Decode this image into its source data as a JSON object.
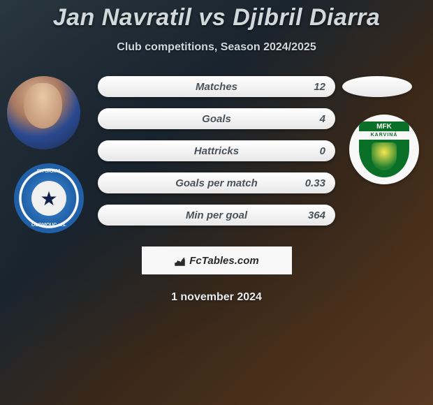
{
  "title": "Jan Navratil vs Djibril Diarra",
  "subtitle": "Club competitions, Season 2024/2025",
  "stats": [
    {
      "label": "Matches",
      "value": "12"
    },
    {
      "label": "Goals",
      "value": "4"
    },
    {
      "label": "Hattricks",
      "value": "0"
    },
    {
      "label": "Goals per match",
      "value": "0.33"
    },
    {
      "label": "Min per goal",
      "value": "364"
    }
  ],
  "club_left": {
    "name_top": "SK SIGMA",
    "name_bottom": "OLOMOUC a.s."
  },
  "club_right": {
    "top": "MFK",
    "band": "KARVINÁ"
  },
  "attribution": "FcTables.com",
  "date": "1 november 2024",
  "colors": {
    "strip_bg": "#f2f2f2",
    "club_left_primary": "#2060a8",
    "club_right_primary": "#0a7028"
  }
}
